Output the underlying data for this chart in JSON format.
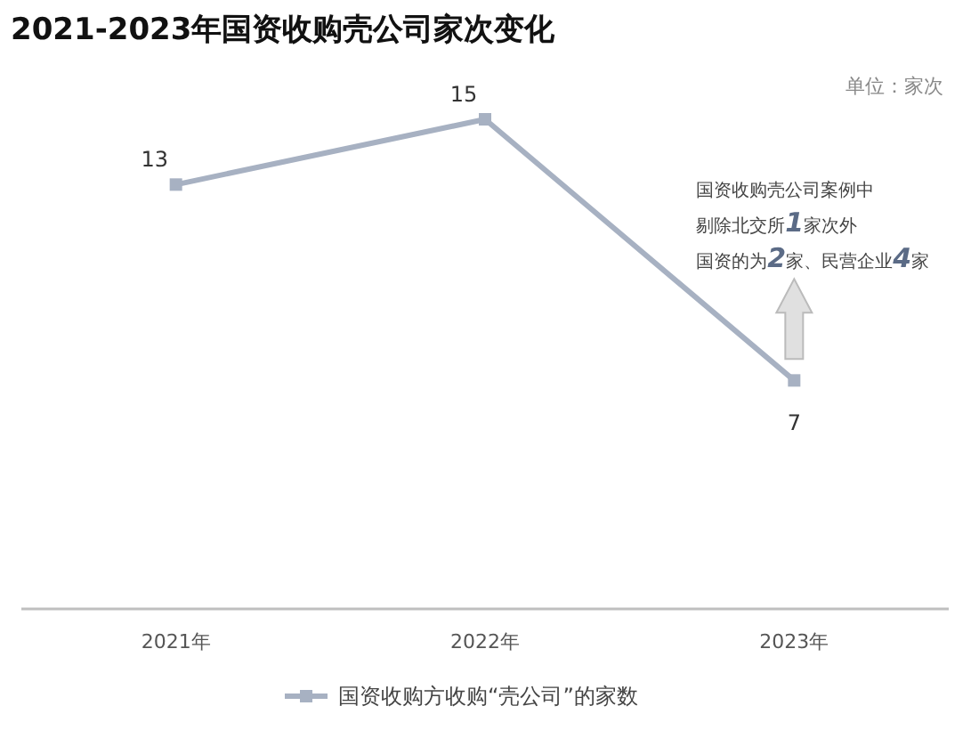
{
  "chart_data": {
    "type": "line",
    "title": "2021-2023年国资收购壳公司家次变化",
    "categories": [
      "2021年",
      "2022年",
      "2023年"
    ],
    "series": [
      {
        "name": "国资收购方收购“壳公司”的家数",
        "color": "#a7b1c2",
        "values": [
          13,
          15,
          7
        ]
      }
    ],
    "tick_labels": "x",
    "data_labels": true,
    "marker": "square",
    "legend": "bottom",
    "grid": false,
    "annotations": [
      "单位：家次",
      "国资收购壳公司案例中",
      "剔除北交所**1**家次外",
      "国资的为**2**家、民营企业**4**家"
    ]
  }
}
